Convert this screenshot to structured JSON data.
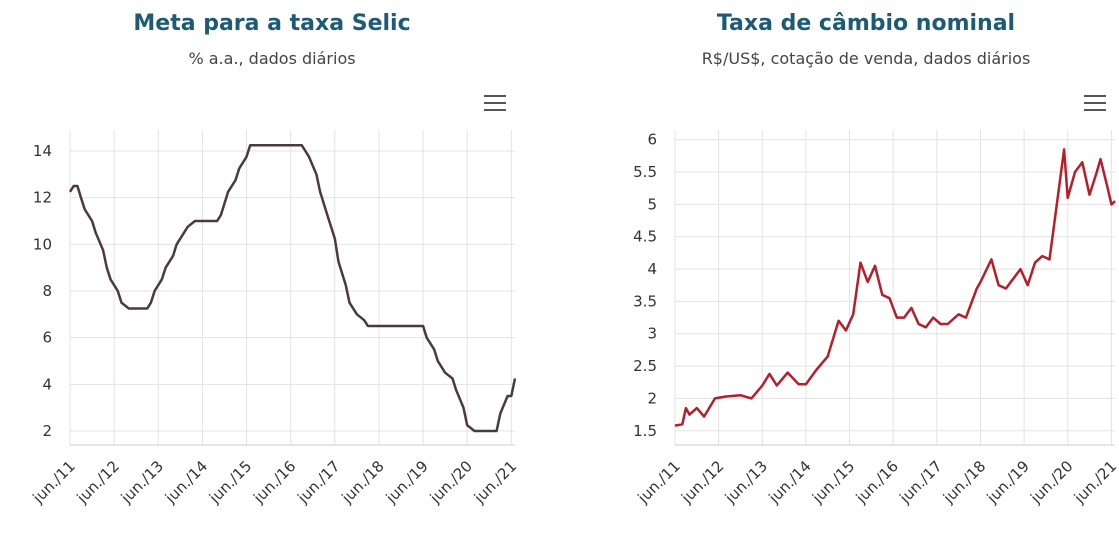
{
  "chart_data": [
    {
      "type": "line",
      "title": "Meta para a taxa Selic",
      "subtitle": "% a.a., dados diários",
      "x": [
        "2011-06",
        "2011-07",
        "2011-08",
        "2011-09",
        "2011-10",
        "2011-12",
        "2012-01",
        "2012-03",
        "2012-04",
        "2012-05",
        "2012-07",
        "2012-08",
        "2012-10",
        "2013-03",
        "2013-04",
        "2013-05",
        "2013-07",
        "2013-08",
        "2013-10",
        "2013-11",
        "2014-01",
        "2014-02",
        "2014-04",
        "2014-10",
        "2014-11",
        "2014-12",
        "2015-01",
        "2015-03",
        "2015-04",
        "2015-06",
        "2015-07",
        "2016-09",
        "2016-10",
        "2016-11",
        "2017-01",
        "2017-02",
        "2017-04",
        "2017-06",
        "2017-07",
        "2017-09",
        "2017-10",
        "2017-12",
        "2018-02",
        "2018-03",
        "2019-06",
        "2019-07",
        "2019-09",
        "2019-10",
        "2019-12",
        "2020-02",
        "2020-03",
        "2020-05",
        "2020-06",
        "2020-08",
        "2021-02",
        "2021-03",
        "2021-05",
        "2021-06",
        "2021-07"
      ],
      "series": [
        {
          "name": "Meta Selic",
          "color": "#4a3a3a",
          "values": [
            12.25,
            12.5,
            12.5,
            12.0,
            11.5,
            11.0,
            10.5,
            9.75,
            9.0,
            8.5,
            8.0,
            7.5,
            7.25,
            7.25,
            7.5,
            8.0,
            8.5,
            9.0,
            9.5,
            10.0,
            10.5,
            10.75,
            11.0,
            11.0,
            11.25,
            11.75,
            12.25,
            12.75,
            13.25,
            13.75,
            14.25,
            14.25,
            14.0,
            13.75,
            13.0,
            12.25,
            11.25,
            10.25,
            9.25,
            8.25,
            7.5,
            7.0,
            6.75,
            6.5,
            6.5,
            6.0,
            5.5,
            5.0,
            4.5,
            4.25,
            3.75,
            3.0,
            2.25,
            2.0,
            2.0,
            2.75,
            3.5,
            3.5,
            4.25
          ]
        }
      ],
      "xlim": [
        "2011-06",
        "2021-07"
      ],
      "xticks": [
        {
          "value": "2011-06",
          "label": "jun./11"
        },
        {
          "value": "2012-06",
          "label": "jun./12"
        },
        {
          "value": "2013-06",
          "label": "jun./13"
        },
        {
          "value": "2014-06",
          "label": "jun./14"
        },
        {
          "value": "2015-06",
          "label": "jun./15"
        },
        {
          "value": "2016-06",
          "label": "jun./16"
        },
        {
          "value": "2017-06",
          "label": "jun./17"
        },
        {
          "value": "2018-06",
          "label": "jun./18"
        },
        {
          "value": "2019-06",
          "label": "jun./19"
        },
        {
          "value": "2020-06",
          "label": "jun./20"
        },
        {
          "value": "2021-06",
          "label": "jun./21"
        }
      ],
      "ylim": [
        1.4,
        14.9
      ],
      "yticks": [
        2,
        4,
        6,
        8,
        10,
        12,
        14
      ],
      "grid": true
    },
    {
      "type": "line",
      "title": "Taxa de câmbio nominal",
      "subtitle": "R$/US$, cotação de venda, dados diários",
      "x": [
        "2011-06",
        "2011-08",
        "2011-09",
        "2011-10",
        "2011-12",
        "2012-02",
        "2012-05",
        "2012-08",
        "2012-12",
        "2013-03",
        "2013-06",
        "2013-08",
        "2013-10",
        "2014-01",
        "2014-04",
        "2014-06",
        "2014-09",
        "2014-12",
        "2015-03",
        "2015-05",
        "2015-07",
        "2015-09",
        "2015-11",
        "2016-01",
        "2016-03",
        "2016-05",
        "2016-07",
        "2016-09",
        "2016-11",
        "2017-01",
        "2017-03",
        "2017-05",
        "2017-07",
        "2017-09",
        "2017-12",
        "2018-02",
        "2018-05",
        "2018-06",
        "2018-09",
        "2018-11",
        "2019-01",
        "2019-05",
        "2019-07",
        "2019-09",
        "2019-11",
        "2020-01",
        "2020-03",
        "2020-05",
        "2020-06",
        "2020-08",
        "2020-10",
        "2020-12",
        "2021-02",
        "2021-03",
        "2021-05",
        "2021-06",
        "2021-07"
      ],
      "series": [
        {
          "name": "Câmbio",
          "color": "#b31f2b",
          "values": [
            1.58,
            1.6,
            1.85,
            1.75,
            1.85,
            1.72,
            2.0,
            2.03,
            2.05,
            2.0,
            2.2,
            2.38,
            2.2,
            2.4,
            2.22,
            2.22,
            2.45,
            2.65,
            3.2,
            3.05,
            3.3,
            4.1,
            3.8,
            4.05,
            3.6,
            3.55,
            3.25,
            3.25,
            3.4,
            3.15,
            3.1,
            3.25,
            3.15,
            3.15,
            3.3,
            3.25,
            3.7,
            3.8,
            4.15,
            3.75,
            3.7,
            4.0,
            3.75,
            4.1,
            4.2,
            4.15,
            5.0,
            5.85,
            5.1,
            5.5,
            5.65,
            5.15,
            5.5,
            5.7,
            5.25,
            5.0,
            5.05
          ]
        }
      ],
      "xlim": [
        "2011-06",
        "2021-07"
      ],
      "xticks": [
        {
          "value": "2011-06",
          "label": "jun./11"
        },
        {
          "value": "2012-06",
          "label": "jun./12"
        },
        {
          "value": "2013-06",
          "label": "jun./13"
        },
        {
          "value": "2014-06",
          "label": "jun./14"
        },
        {
          "value": "2015-06",
          "label": "jun./15"
        },
        {
          "value": "2016-06",
          "label": "jun./16"
        },
        {
          "value": "2017-06",
          "label": "jun./17"
        },
        {
          "value": "2018-06",
          "label": "jun./18"
        },
        {
          "value": "2019-06",
          "label": "jun./19"
        },
        {
          "value": "2020-06",
          "label": "jun./20"
        },
        {
          "value": "2021-06",
          "label": "jun./21"
        }
      ],
      "ylim": [
        1.28,
        6.15
      ],
      "yticks": [
        1.5,
        2,
        2.5,
        3,
        3.5,
        4,
        4.5,
        5,
        5.5,
        6
      ],
      "grid": true
    }
  ]
}
